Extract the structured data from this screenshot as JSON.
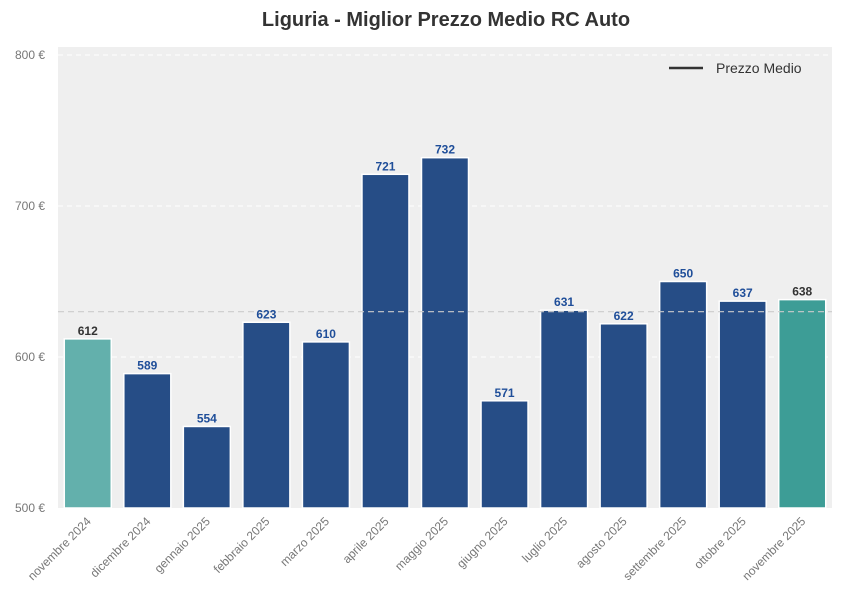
{
  "chart_data": {
    "type": "bar",
    "title": "Liguria - Miglior Prezzo Medio RC Auto",
    "xlabel": "",
    "ylabel": "",
    "ylim": [
      500,
      800
    ],
    "yticks": [
      500,
      600,
      700,
      800
    ],
    "ytick_labels": [
      "500 €",
      "600 €",
      "700 €",
      "800 €"
    ],
    "categories": [
      "novembre 2024",
      "dicembre 2024",
      "gennaio 2025",
      "febbraio 2025",
      "marzo 2025",
      "aprile 2025",
      "maggio 2025",
      "giugno 2025",
      "luglio 2025",
      "agosto 2025",
      "settembre 2025",
      "ottobre 2025",
      "novembre 2025"
    ],
    "values": [
      612,
      589,
      554,
      623,
      610,
      721,
      732,
      571,
      631,
      622,
      650,
      637,
      638
    ],
    "mean": 630,
    "legend": {
      "label": "Prezzo Medio",
      "placement": "top-right"
    },
    "grid": true,
    "colors": {
      "bar": "#264d86",
      "first_bar": "#63b0ac",
      "last_bar": "#3d9d96",
      "label_mid": "#1f4e99",
      "label_edge": "#333333",
      "background": "#efefef",
      "mean_line": "#cccccc"
    }
  }
}
